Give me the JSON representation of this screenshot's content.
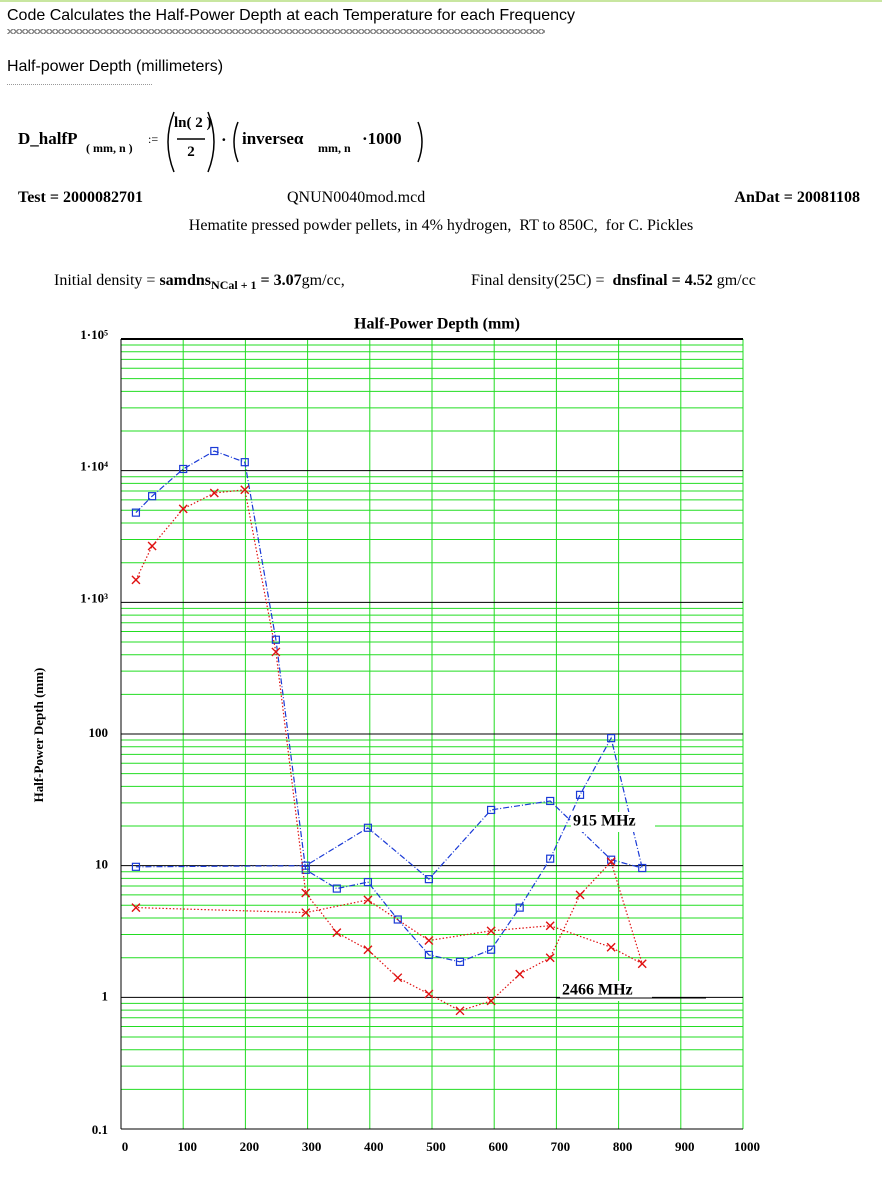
{
  "header": {
    "title": "Code Calculates the Half-Power Depth at each Temperature for each Frequency",
    "section": "Half-power Depth (millimeters)"
  },
  "formula": {
    "lhs": "D_halfP",
    "lhs_subscript": "( mm, n )",
    "assign": ":=",
    "numerator": "ln( 2 )",
    "denominator": "2",
    "dot": "·",
    "rhs": "inverseα",
    "rhs_subscript": "mm, n",
    "multiplier": "·1000"
  },
  "info": {
    "test": "Test = 2000082701",
    "file": "QNUN0040mod.mcd",
    "andat": "AnDat = 20081108",
    "description": "Hematite pressed powder pellets, in 4% hydrogen,  RT to 850C,  for C. Pickles",
    "initial_label": "Initial density =",
    "initial_var": "samdns",
    "initial_sub": "NCal + 1",
    "initial_value": "= 3.07",
    "initial_unit": "gm/cc,",
    "final_label": "Final density(25C) =",
    "final_var": "dnsfinal",
    "final_value": "= 4.52",
    "final_unit": "gm/cc"
  },
  "chart_data": {
    "type": "line",
    "title": "Half-Power Depth (mm)",
    "y_label": "Half-Power Depth (mm)",
    "x": [
      24,
      50,
      100,
      150,
      199,
      249,
      297,
      347,
      397,
      445,
      495,
      545,
      595,
      641,
      690,
      738,
      788,
      838,
      788,
      690,
      595,
      495,
      397,
      297,
      24
    ],
    "series": [
      {
        "name": "915 MHz",
        "color": "#1a3ad6",
        "marker": "square",
        "dash": "6,2,1,2",
        "values": [
          4800,
          6400,
          10300,
          14100,
          11600,
          520,
          9.3,
          6.7,
          7.5,
          3.9,
          2.1,
          1.86,
          2.3,
          4.8,
          11.3,
          34.5,
          93,
          9.6,
          11.1,
          31,
          26.5,
          7.9,
          19.4,
          10,
          9.8
        ]
      },
      {
        "name": "2466 MHz",
        "color": "#e01010",
        "marker": "x",
        "dash": "1.5,2",
        "values": [
          1480,
          2680,
          5130,
          6770,
          7160,
          420,
          6.2,
          3.1,
          2.3,
          1.41,
          1.06,
          0.79,
          0.94,
          1.5,
          2.0,
          6.0,
          10.7,
          1.8,
          2.4,
          3.5,
          3.2,
          2.7,
          5.5,
          4.4,
          4.8
        ]
      }
    ],
    "xlim": [
      0,
      1000
    ],
    "xticks": [
      0,
      100,
      200,
      300,
      400,
      500,
      600,
      700,
      800,
      900,
      1000
    ],
    "ylim": [
      0.1,
      100000
    ],
    "log_y": true,
    "yticks": [
      0.1,
      1,
      10,
      100,
      {
        "value": 1000,
        "label": "1·10³"
      },
      {
        "value": 10000,
        "label": "1·10⁴"
      },
      {
        "value": 100000,
        "label": "1·10⁵"
      }
    ],
    "grid": true,
    "minor_grid": true,
    "grid_color": "#22dd22"
  }
}
